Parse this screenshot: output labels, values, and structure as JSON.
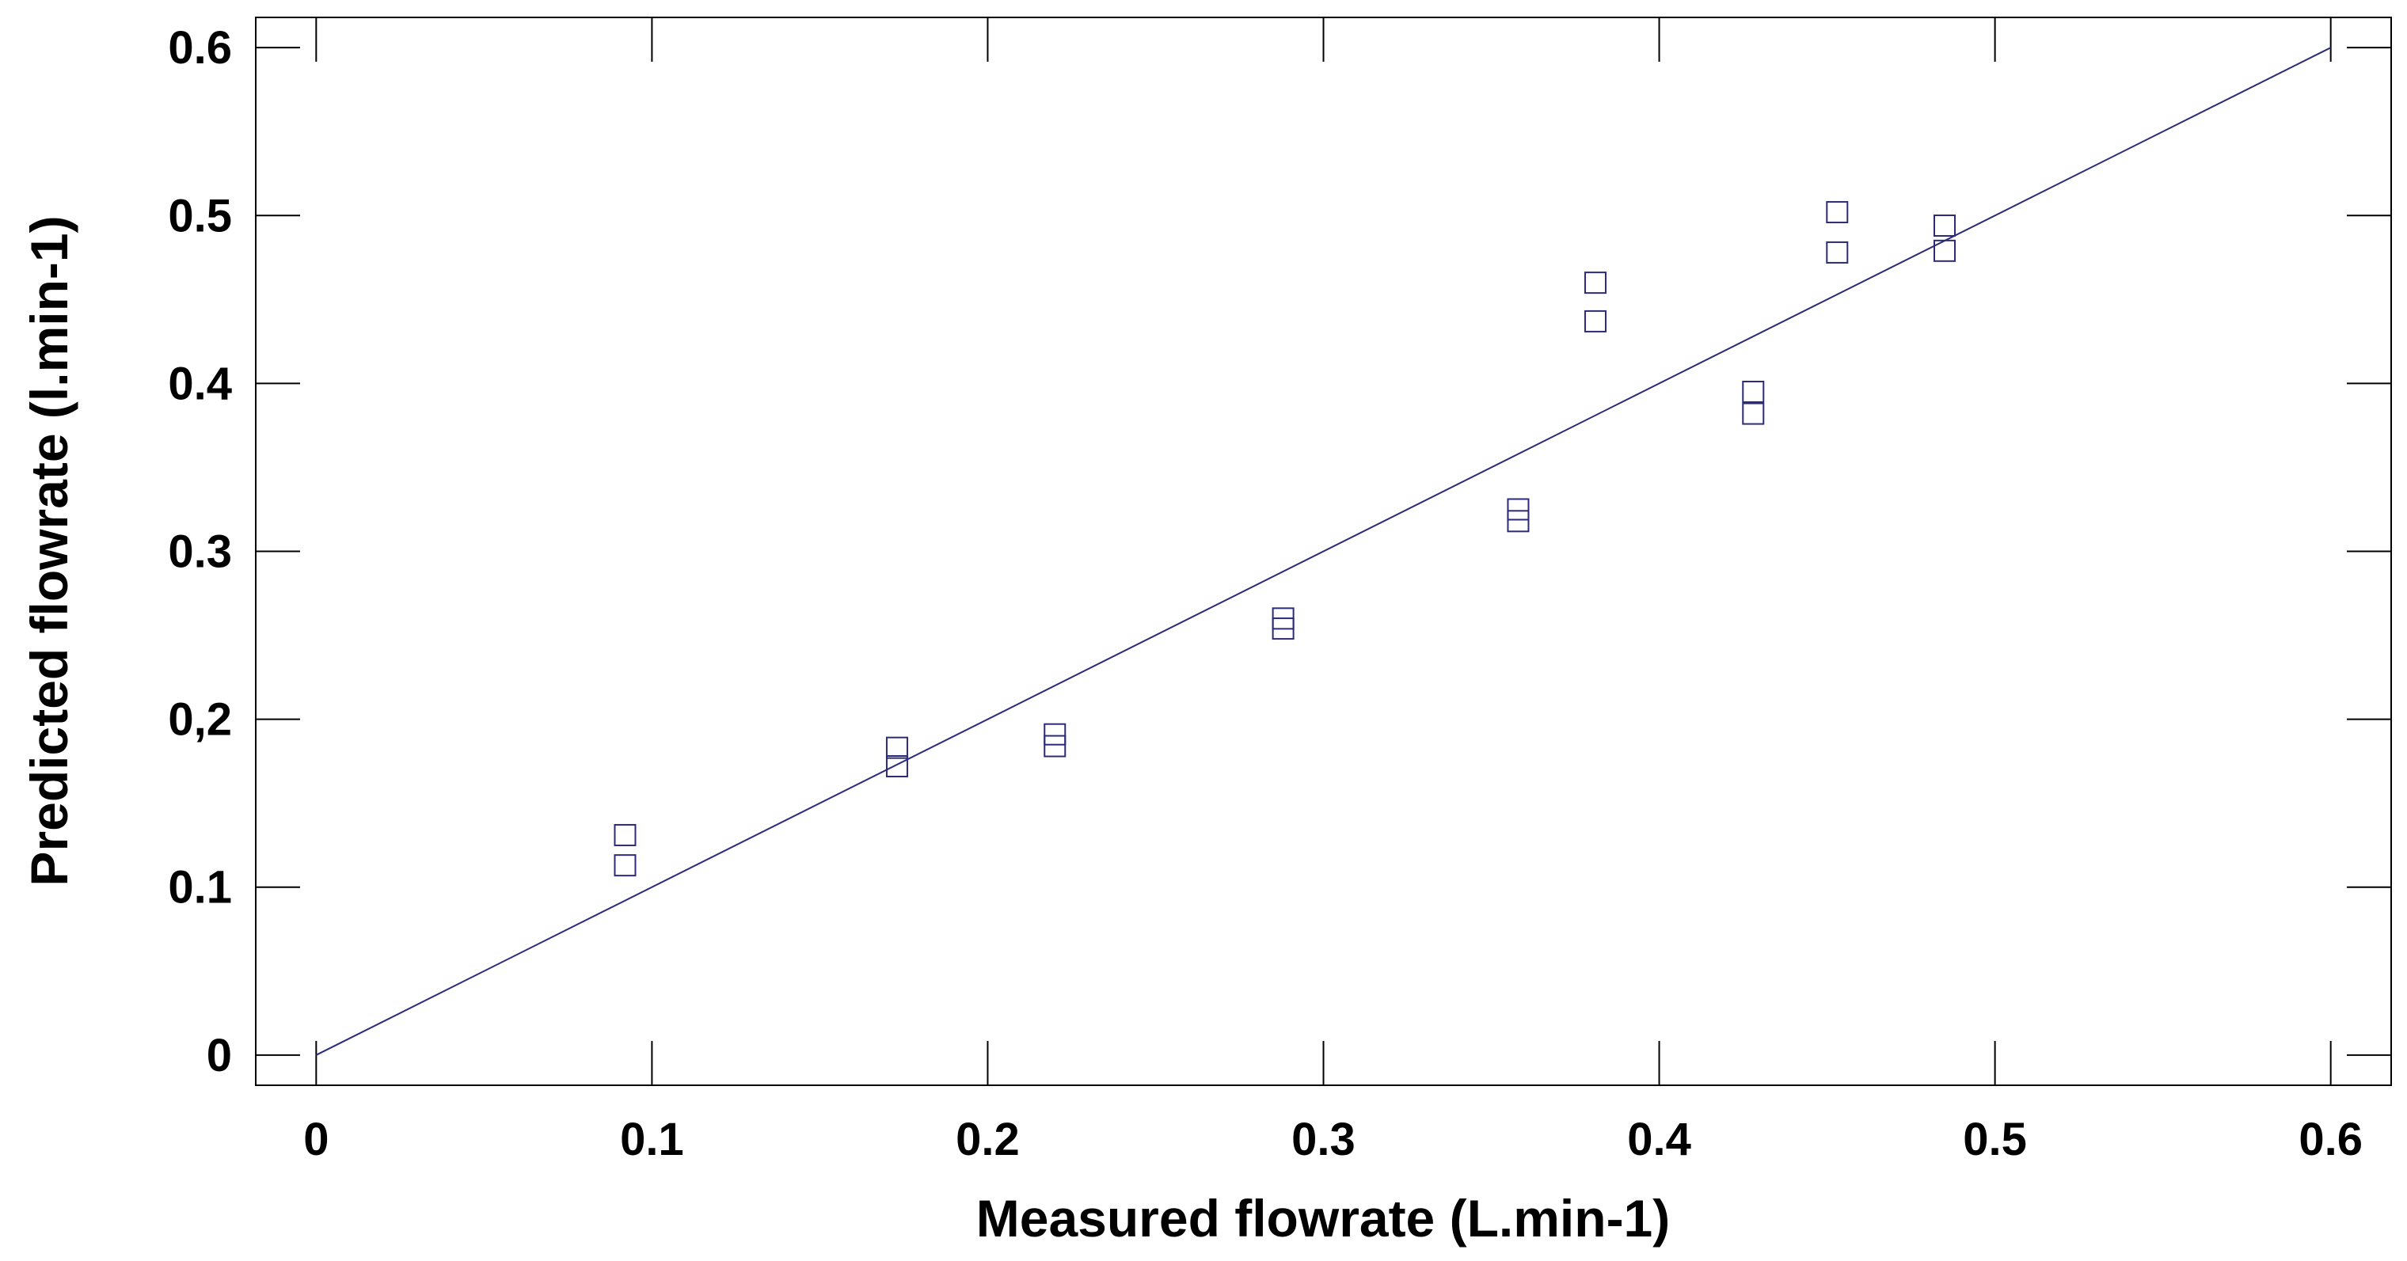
{
  "chart_data": {
    "type": "scatter",
    "title": "",
    "xlabel": "Measured flowrate (L.min-1)",
    "ylabel": "Predicted flowrate (l.min-1)",
    "xlim": [
      -0.018,
      0.618
    ],
    "ylim": [
      -0.018,
      0.618
    ],
    "xticks": [
      0,
      0.1,
      0.2,
      0.3,
      0.4,
      0.5,
      0.6
    ],
    "xtick_labels": [
      "0",
      "0.1",
      "0.2",
      "0.3",
      "0.4",
      "0.5",
      "0.6"
    ],
    "yticks": [
      0,
      0.1,
      0.2,
      0.3,
      0.4,
      0.5,
      0.6
    ],
    "ytick_labels": [
      "0",
      "0.1",
      "0,2",
      "0.3",
      "0.4",
      "0.5",
      "0.6"
    ],
    "grid": false,
    "colors": {
      "series": "#2b2b7a",
      "axis": "#000000"
    },
    "series": [
      {
        "marker": "square-open",
        "points": [
          {
            "x": 0.092,
            "y": 0.131
          },
          {
            "x": 0.092,
            "y": 0.113
          },
          {
            "x": 0.173,
            "y": 0.183
          },
          {
            "x": 0.173,
            "y": 0.172
          },
          {
            "x": 0.22,
            "y": 0.191
          },
          {
            "x": 0.22,
            "y": 0.184
          },
          {
            "x": 0.288,
            "y": 0.26
          },
          {
            "x": 0.288,
            "y": 0.254
          },
          {
            "x": 0.358,
            "y": 0.325
          },
          {
            "x": 0.358,
            "y": 0.318
          },
          {
            "x": 0.381,
            "y": 0.46
          },
          {
            "x": 0.381,
            "y": 0.437
          },
          {
            "x": 0.428,
            "y": 0.395
          },
          {
            "x": 0.428,
            "y": 0.382
          },
          {
            "x": 0.453,
            "y": 0.502
          },
          {
            "x": 0.453,
            "y": 0.478
          },
          {
            "x": 0.485,
            "y": 0.494
          },
          {
            "x": 0.485,
            "y": 0.479
          }
        ]
      }
    ],
    "reference_line": {
      "x": [
        0,
        0.6
      ],
      "y": [
        0,
        0.6
      ]
    }
  }
}
